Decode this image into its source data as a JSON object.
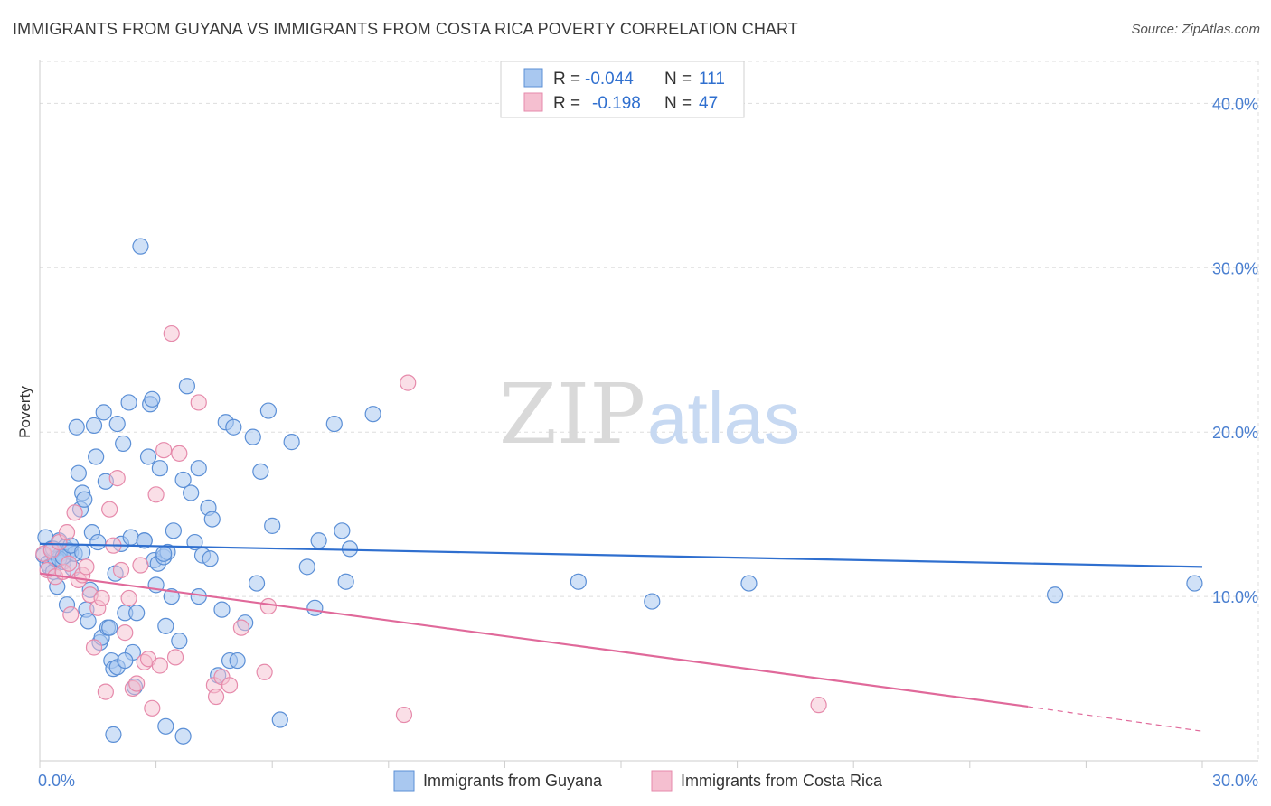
{
  "title": "IMMIGRANTS FROM GUYANA VS IMMIGRANTS FROM COSTA RICA POVERTY CORRELATION CHART",
  "source": "Source: ZipAtlas.com",
  "watermark": {
    "zip": "ZIP",
    "atlas": "atlas"
  },
  "legend": {
    "rows": [
      {
        "r_label": "R =",
        "r_value": "-0.044",
        "n_label": "N =",
        "n_value": "111"
      },
      {
        "r_label": "R =",
        "r_value": "-0.198",
        "n_label": "N =",
        "n_value": "47"
      }
    ]
  },
  "colors": {
    "guyana_fill": "#a9c8f0",
    "guyana_stroke": "#5b8fd6",
    "guyana_line": "#2f6fcf",
    "costa_fill": "#f5bfd0",
    "costa_stroke": "#e68aab",
    "costa_line": "#e0699a",
    "grid": "#dddddd",
    "tick_text": "#4a7fd0"
  },
  "chart_data": {
    "type": "scatter",
    "title": "IMMIGRANTS FROM GUYANA VS IMMIGRANTS FROM COSTA RICA POVERTY CORRELATION CHART",
    "xlabel": "",
    "ylabel": "Poverty",
    "xlim": [
      0,
      30
    ],
    "ylim": [
      0,
      42
    ],
    "x_tick_labels": [
      "0.0%",
      "30.0%"
    ],
    "y_ticks": [
      10,
      20,
      30,
      40
    ],
    "y_tick_labels": [
      "10.0%",
      "20.0%",
      "30.0%",
      "40.0%"
    ],
    "grid": true,
    "legend_position": "top-center",
    "series": [
      {
        "name": "Immigrants from Guyana",
        "r": -0.044,
        "n": 111,
        "trend": {
          "x": [
            0,
            30
          ],
          "y": [
            13.2,
            11.8
          ]
        },
        "points": [
          [
            0.1,
            12.5
          ],
          [
            0.15,
            13.6
          ],
          [
            0.2,
            12.0
          ],
          [
            0.25,
            11.8
          ],
          [
            0.3,
            12.9
          ],
          [
            0.35,
            11.5
          ],
          [
            0.4,
            12.3
          ],
          [
            0.45,
            10.6
          ],
          [
            0.5,
            13.4
          ],
          [
            0.55,
            12.6
          ],
          [
            0.6,
            12.1
          ],
          [
            0.65,
            13.0
          ],
          [
            0.7,
            9.5
          ],
          [
            0.75,
            12.8
          ],
          [
            0.8,
            12.7
          ],
          [
            0.85,
            11.7
          ],
          [
            0.9,
            12.6
          ],
          [
            0.95,
            20.3
          ],
          [
            1.0,
            17.5
          ],
          [
            1.05,
            15.3
          ],
          [
            1.1,
            16.3
          ],
          [
            1.15,
            15.9
          ],
          [
            1.2,
            9.2
          ],
          [
            1.25,
            8.5
          ],
          [
            1.3,
            10.4
          ],
          [
            1.35,
            13.9
          ],
          [
            1.4,
            20.4
          ],
          [
            1.45,
            18.5
          ],
          [
            1.5,
            13.3
          ],
          [
            1.55,
            7.2
          ],
          [
            1.6,
            7.5
          ],
          [
            1.65,
            21.2
          ],
          [
            1.7,
            17.0
          ],
          [
            1.75,
            8.1
          ],
          [
            1.8,
            8.1
          ],
          [
            1.85,
            6.1
          ],
          [
            1.9,
            5.6
          ],
          [
            1.95,
            11.4
          ],
          [
            2.0,
            20.5
          ],
          [
            2.1,
            13.2
          ],
          [
            2.15,
            19.3
          ],
          [
            2.2,
            9.0
          ],
          [
            2.3,
            21.8
          ],
          [
            2.35,
            13.6
          ],
          [
            2.4,
            6.6
          ],
          [
            2.45,
            4.5
          ],
          [
            2.5,
            9.0
          ],
          [
            2.6,
            31.3
          ],
          [
            2.7,
            13.4
          ],
          [
            2.8,
            18.5
          ],
          [
            2.85,
            21.7
          ],
          [
            2.9,
            22.0
          ],
          [
            2.95,
            12.2
          ],
          [
            3.0,
            10.7
          ],
          [
            3.05,
            12.0
          ],
          [
            3.1,
            17.8
          ],
          [
            3.2,
            12.4
          ],
          [
            3.25,
            8.2
          ],
          [
            3.3,
            12.7
          ],
          [
            3.4,
            10.0
          ],
          [
            3.45,
            14.0
          ],
          [
            3.6,
            7.3
          ],
          [
            3.7,
            17.1
          ],
          [
            3.8,
            22.8
          ],
          [
            3.9,
            16.3
          ],
          [
            4.0,
            13.3
          ],
          [
            4.1,
            17.8
          ],
          [
            4.2,
            12.5
          ],
          [
            4.35,
            15.4
          ],
          [
            4.4,
            12.3
          ],
          [
            4.45,
            14.7
          ],
          [
            4.6,
            5.2
          ],
          [
            4.7,
            9.2
          ],
          [
            4.8,
            20.6
          ],
          [
            4.9,
            6.1
          ],
          [
            5.0,
            20.3
          ],
          [
            5.1,
            6.1
          ],
          [
            5.3,
            8.4
          ],
          [
            5.5,
            19.7
          ],
          [
            5.6,
            10.8
          ],
          [
            5.7,
            17.6
          ],
          [
            5.9,
            21.3
          ],
          [
            6.0,
            14.3
          ],
          [
            6.2,
            2.5
          ],
          [
            6.5,
            19.4
          ],
          [
            6.9,
            11.8
          ],
          [
            7.1,
            9.3
          ],
          [
            7.2,
            13.4
          ],
          [
            7.6,
            20.5
          ],
          [
            7.8,
            14.0
          ],
          [
            7.9,
            10.9
          ],
          [
            8.0,
            12.9
          ],
          [
            8.6,
            21.1
          ],
          [
            13.9,
            10.9
          ],
          [
            15.8,
            9.7
          ],
          [
            18.3,
            10.8
          ],
          [
            26.2,
            10.1
          ],
          [
            29.8,
            10.8
          ],
          [
            1.9,
            1.6
          ],
          [
            3.25,
            2.1
          ],
          [
            3.7,
            1.5
          ],
          [
            2.0,
            5.7
          ],
          [
            2.7,
            13.4
          ],
          [
            3.2,
            12.6
          ],
          [
            4.1,
            10.0
          ],
          [
            0.5,
            12.3
          ],
          [
            0.35,
            12.9
          ],
          [
            0.6,
            12.4
          ],
          [
            0.8,
            13.1
          ],
          [
            1.1,
            12.7
          ],
          [
            2.2,
            6.1
          ]
        ]
      },
      {
        "name": "Immigrants from Costa Rica",
        "r": -0.198,
        "n": 47,
        "trend": {
          "x": [
            0,
            25.5
          ],
          "y": [
            11.4,
            3.3
          ]
        },
        "trend_dashed": {
          "x": [
            25.5,
            30
          ],
          "y": [
            3.3,
            1.8
          ]
        },
        "points": [
          [
            0.1,
            12.6
          ],
          [
            0.2,
            11.6
          ],
          [
            0.3,
            12.8
          ],
          [
            0.4,
            11.2
          ],
          [
            0.5,
            13.3
          ],
          [
            0.6,
            11.5
          ],
          [
            0.7,
            13.9
          ],
          [
            0.75,
            12.0
          ],
          [
            0.8,
            8.9
          ],
          [
            0.9,
            15.1
          ],
          [
            1.0,
            11.0
          ],
          [
            1.1,
            11.3
          ],
          [
            1.2,
            11.8
          ],
          [
            1.3,
            10.1
          ],
          [
            1.4,
            6.9
          ],
          [
            1.5,
            9.3
          ],
          [
            1.6,
            9.9
          ],
          [
            1.7,
            4.2
          ],
          [
            1.8,
            15.3
          ],
          [
            1.9,
            13.1
          ],
          [
            2.0,
            17.2
          ],
          [
            2.1,
            11.6
          ],
          [
            2.2,
            7.8
          ],
          [
            2.3,
            9.9
          ],
          [
            2.4,
            4.4
          ],
          [
            2.5,
            4.7
          ],
          [
            2.6,
            11.9
          ],
          [
            2.7,
            6.0
          ],
          [
            2.8,
            6.2
          ],
          [
            2.9,
            3.2
          ],
          [
            3.0,
            16.2
          ],
          [
            3.1,
            5.8
          ],
          [
            3.2,
            18.9
          ],
          [
            3.4,
            26.0
          ],
          [
            3.5,
            6.3
          ],
          [
            3.6,
            18.7
          ],
          [
            4.1,
            21.8
          ],
          [
            4.5,
            4.6
          ],
          [
            4.55,
            3.9
          ],
          [
            4.7,
            5.1
          ],
          [
            4.9,
            4.6
          ],
          [
            5.2,
            8.1
          ],
          [
            5.8,
            5.4
          ],
          [
            5.9,
            9.4
          ],
          [
            9.5,
            23.0
          ],
          [
            9.4,
            2.8
          ],
          [
            20.1,
            3.4
          ]
        ]
      }
    ]
  },
  "bottom_legend": {
    "guyana_label": "Immigrants from Guyana",
    "costa_label": "Immigrants from Costa Rica"
  }
}
